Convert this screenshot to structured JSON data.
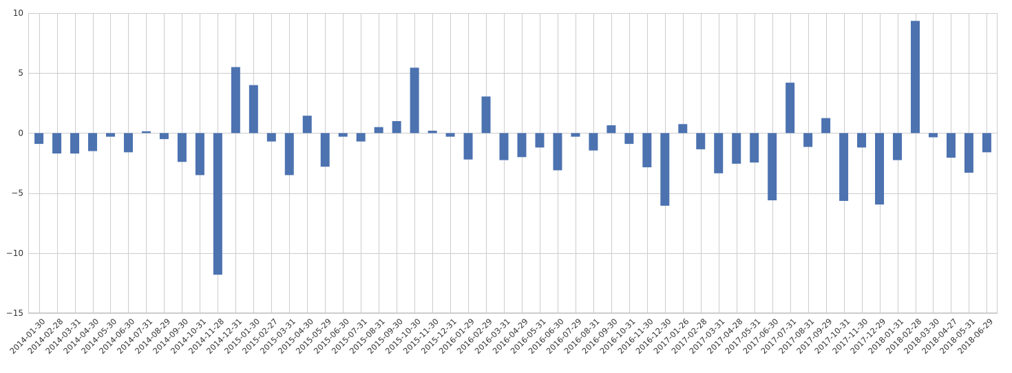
{
  "chart_data": {
    "type": "bar",
    "grid": true,
    "ylim": [
      -15,
      10
    ],
    "yticks": [
      10,
      5,
      0,
      -5,
      -10,
      -15
    ],
    "ytick_labels": [
      "10",
      "5",
      "0",
      "−5",
      "−10",
      "−15"
    ],
    "bar_color": "#4c72b0",
    "categories": [
      "2014-01-30",
      "2014-02-28",
      "2014-03-31",
      "2014-04-30",
      "2014-05-30",
      "2014-06-30",
      "2014-07-31",
      "2014-08-29",
      "2014-09-30",
      "2014-10-31",
      "2014-11-28",
      "2014-12-31",
      "2015-01-30",
      "2015-02-27",
      "2015-03-31",
      "2015-04-30",
      "2015-05-29",
      "2015-06-30",
      "2015-07-31",
      "2015-08-31",
      "2015-09-30",
      "2015-10-30",
      "2015-11-30",
      "2015-12-31",
      "2016-01-29",
      "2016-02-29",
      "2016-03-31",
      "2016-04-29",
      "2016-05-31",
      "2016-06-30",
      "2016-07-29",
      "2016-08-31",
      "2016-09-30",
      "2016-10-31",
      "2016-11-30",
      "2016-12-30",
      "2017-01-26",
      "2017-02-28",
      "2017-03-31",
      "2017-04-28",
      "2017-05-31",
      "2017-06-30",
      "2017-07-31",
      "2017-08-31",
      "2017-09-29",
      "2017-10-31",
      "2017-11-30",
      "2017-12-29",
      "2018-01-31",
      "2018-02-28",
      "2018-03-30",
      "2018-04-27",
      "2018-05-31",
      "2018-06-29"
    ],
    "values": [
      -0.9,
      -1.7,
      -1.7,
      -1.5,
      -0.3,
      -1.6,
      0.15,
      -0.5,
      -2.4,
      -3.5,
      -11.8,
      5.5,
      4.0,
      -0.7,
      -3.5,
      1.45,
      -2.8,
      -0.3,
      -0.7,
      0.5,
      1.0,
      5.45,
      0.2,
      -0.3,
      -2.2,
      3.05,
      -2.25,
      -2.0,
      -1.2,
      -3.1,
      -0.3,
      -1.45,
      0.65,
      -0.9,
      -2.85,
      -6.05,
      0.75,
      -1.35,
      -3.35,
      -2.55,
      -2.45,
      -5.6,
      4.2,
      -1.15,
      1.25,
      -5.65,
      -1.2,
      -5.95,
      -2.25,
      9.35,
      -0.35,
      -2.05,
      -3.3,
      -1.6
    ]
  }
}
